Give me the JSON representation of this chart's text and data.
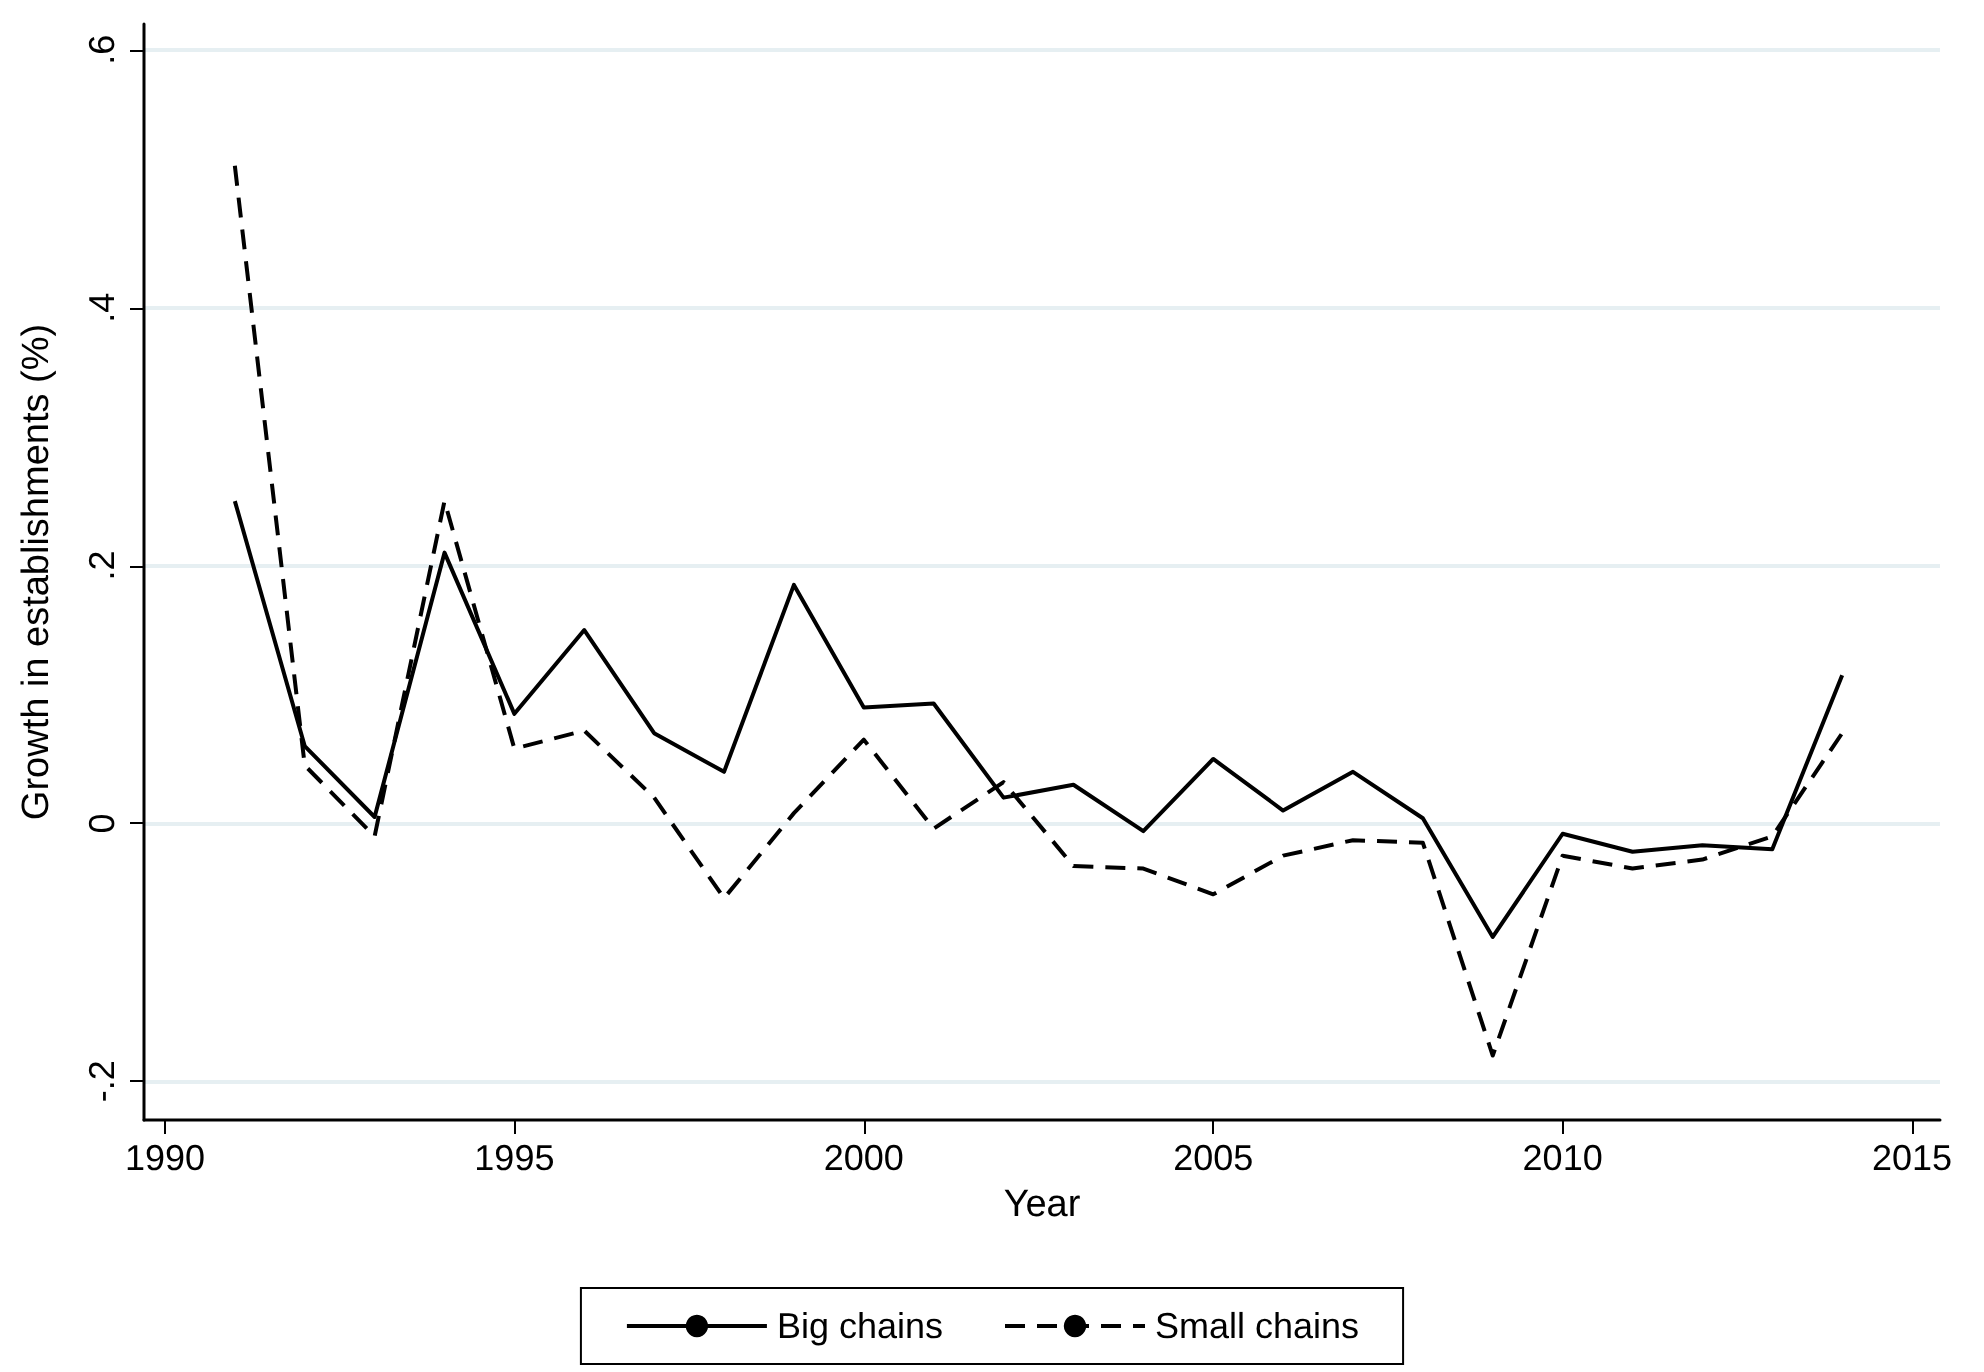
{
  "chart_data": {
    "type": "line",
    "xlabel": "Year",
    "ylabel": "Growth in establishments (%)",
    "x": [
      1991,
      1992,
      1993,
      1994,
      1995,
      1996,
      1997,
      1998,
      1999,
      2000,
      2001,
      2002,
      2003,
      2004,
      2005,
      2006,
      2007,
      2008,
      2009,
      2010,
      2011,
      2012,
      2013,
      2014
    ],
    "series": [
      {
        "name": "Big chains",
        "color": "#000000",
        "line_style": "solid",
        "values": [
          0.25,
          0.06,
          0.005,
          0.21,
          0.085,
          0.15,
          0.07,
          0.04,
          0.185,
          0.09,
          0.093,
          0.02,
          0.03,
          -0.006,
          0.05,
          0.01,
          0.04,
          0.004,
          -0.088,
          -0.008,
          -0.022,
          -0.017,
          -0.02,
          0.115
        ]
      },
      {
        "name": "Small chains",
        "color": "#000000",
        "line_style": "dashed",
        "values": [
          0.51,
          0.045,
          -0.01,
          0.25,
          0.058,
          0.072,
          0.02,
          -0.058,
          0.008,
          0.065,
          -0.004,
          0.032,
          -0.033,
          -0.035,
          -0.055,
          -0.025,
          -0.013,
          -0.015,
          -0.18,
          -0.025,
          -0.035,
          -0.028,
          -0.01,
          0.07
        ]
      }
    ],
    "xlim": [
      1989.7,
      2015.4
    ],
    "xticks": [
      1990,
      1995,
      2000,
      2005,
      2010,
      2015
    ],
    "ylim": [
      -0.23,
      0.62
    ],
    "yticks": [
      {
        "value": -0.2,
        "label": "-.2"
      },
      0,
      {
        "value": 0.2,
        "label": ".2"
      },
      {
        "value": 0.4,
        "label": ".4"
      },
      {
        "value": 0.6,
        "label": ".6"
      }
    ],
    "grid": "y",
    "legend": "bottom",
    "marker": "none"
  }
}
